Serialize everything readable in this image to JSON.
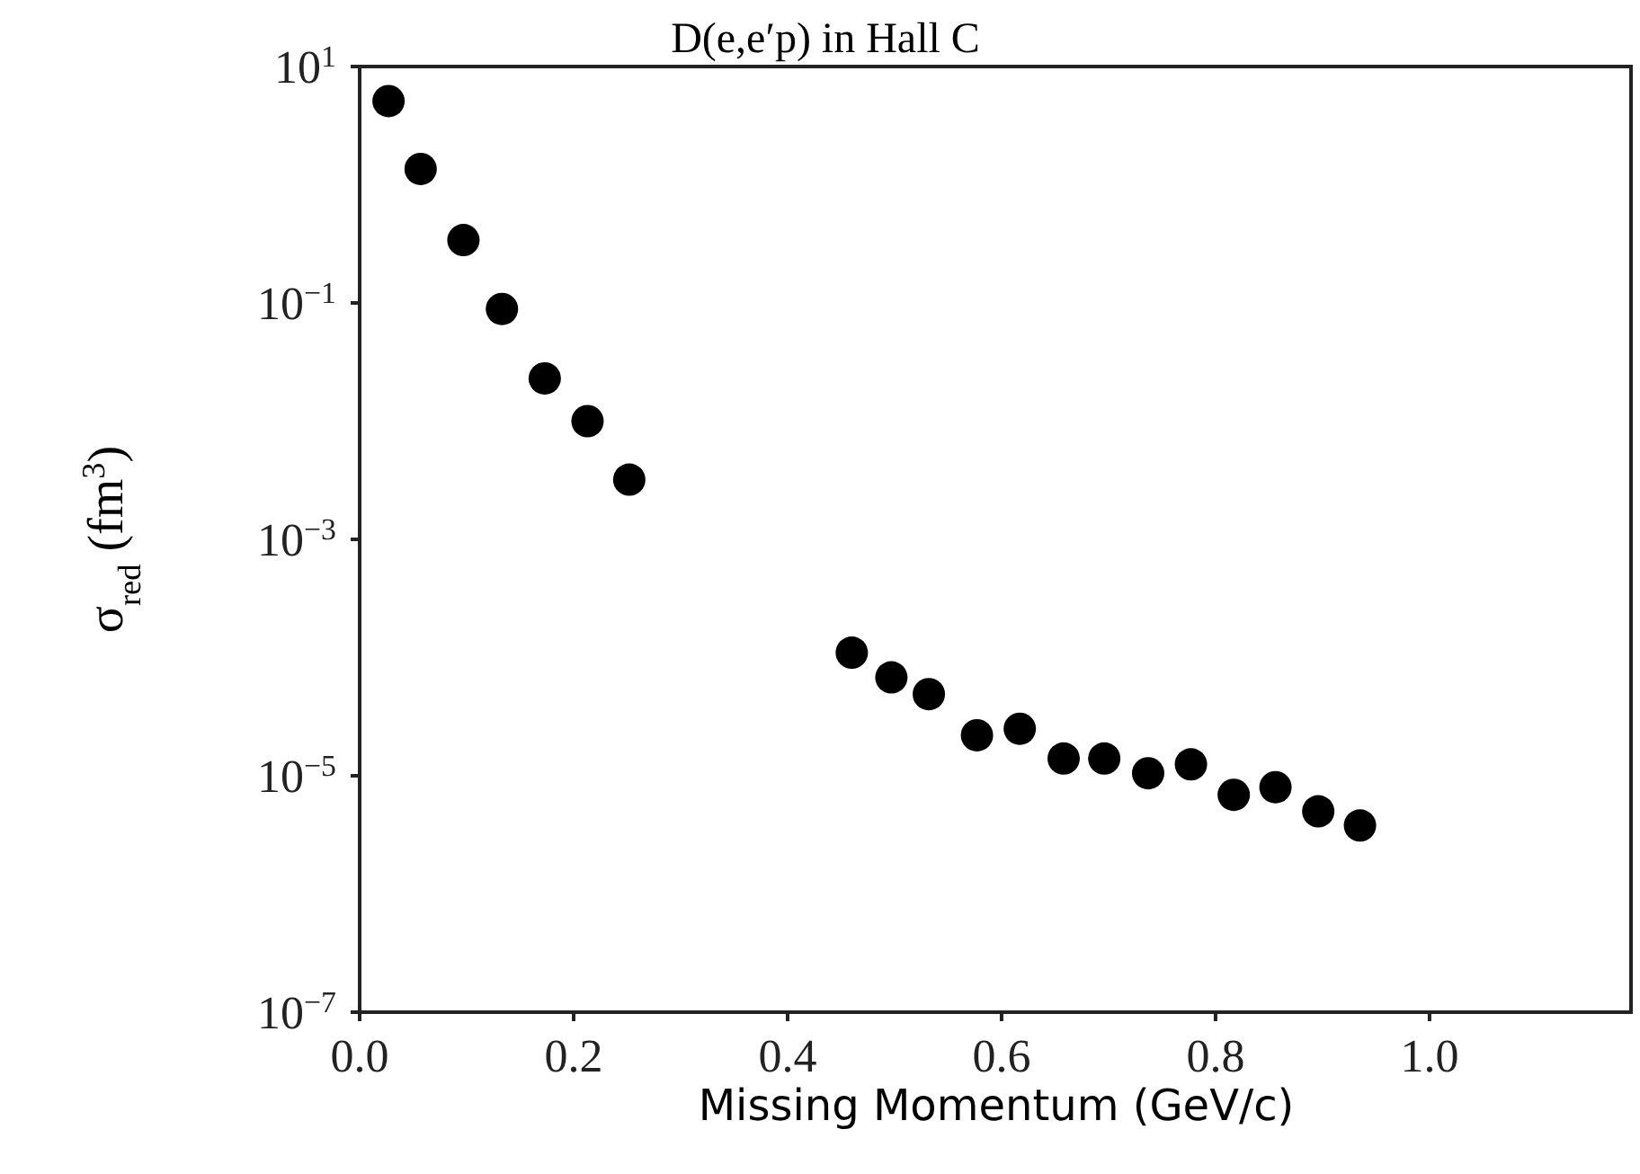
{
  "chart_data": {
    "type": "scatter",
    "title": "D(e,e′p) in Hall C",
    "xlabel": "Missing Momentum (GeV/c)",
    "ylabel": "σ$_{red}$ (fm$^{3}$)",
    "log": "y",
    "marker": "circle",
    "grid": false,
    "xlim": [
      0,
      1.19
    ],
    "xticks": [
      {
        "value": 0,
        "label": "0.0"
      },
      0.2,
      0.4,
      0.6,
      0.8,
      {
        "value": 1,
        "label": "1.0"
      }
    ],
    "ylim": [
      1e-07,
      10
    ],
    "yticks": [
      {
        "value": 1e-07,
        "label": "10$^{−7}$"
      },
      {
        "value": 1e-05,
        "label": "10$^{−5}$"
      },
      {
        "value": 0.001,
        "label": "10$^{−3}$"
      },
      {
        "value": 0.1,
        "label": "10$^{−1}$"
      },
      {
        "value": 10,
        "label": "10$^{1}$"
      }
    ],
    "series": [
      {
        "color": "#000000",
        "x": [
          0.027,
          0.057,
          0.097,
          0.133,
          0.173,
          0.213,
          0.252,
          0.46,
          0.497,
          0.532,
          0.577,
          0.617,
          0.658,
          0.696,
          0.737,
          0.777,
          0.817,
          0.856,
          0.896,
          0.935
        ],
        "values": [
          5.1,
          1.36,
          0.34,
          0.089,
          0.023,
          0.01,
          0.0032,
          0.00011,
          6.8e-05,
          4.9e-05,
          2.2e-05,
          2.5e-05,
          1.4e-05,
          1.4e-05,
          1.05e-05,
          1.25e-05,
          6.9e-06,
          8e-06,
          5e-06,
          3.8e-06
        ]
      }
    ]
  }
}
